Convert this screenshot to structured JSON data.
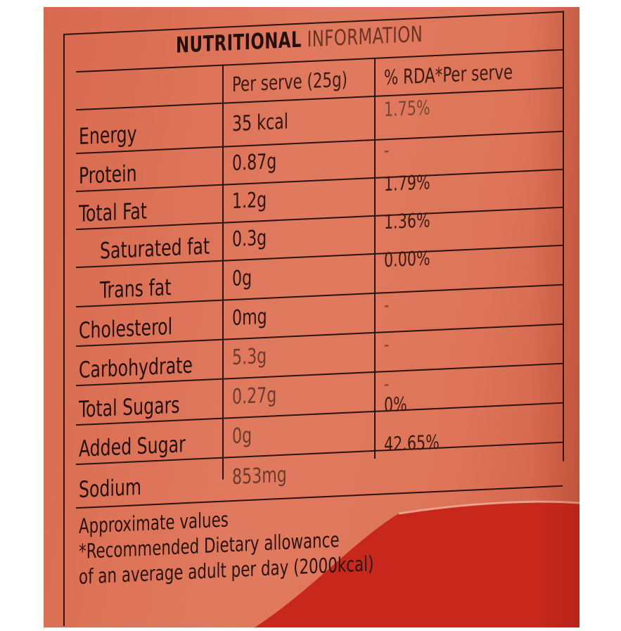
{
  "panel": {
    "title_part1": "NUTRITIONAL",
    "title_part2": "INFORMATION",
    "col_serve": "Per serve (25g)",
    "col_rda": "% RDA*Per serve"
  },
  "rows": [
    {
      "nutrient": "Energy",
      "per_serve": "35 kcal",
      "rda": "1.75%"
    },
    {
      "nutrient": "Protein",
      "per_serve": "0.87g",
      "rda": "-"
    },
    {
      "nutrient": "Total Fat",
      "per_serve": "1.2g",
      "rda": "1.79%"
    },
    {
      "nutrient": "Saturated fat",
      "per_serve": "0.3g",
      "rda": "1.36%"
    },
    {
      "nutrient": "Trans fat",
      "per_serve": "0g",
      "rda": "0.00%"
    },
    {
      "nutrient": "Cholesterol",
      "per_serve": "0mg",
      "rda": "-"
    },
    {
      "nutrient": "Carbohydrate",
      "per_serve": "5.3g",
      "rda": "-"
    },
    {
      "nutrient": "Total Sugars",
      "per_serve": "0.27g",
      "rda": "-"
    },
    {
      "nutrient": "Added Sugar",
      "per_serve": "0g",
      "rda": "0%"
    },
    {
      "nutrient": "Sodium",
      "per_serve": "853mg",
      "rda": "42.65%"
    }
  ],
  "footnote": {
    "line1": "Approximate values",
    "line2": "*Recommended Dietary allowance",
    "line3": "of an average adult per day (2000kcal)"
  },
  "colors": {
    "pack": "#de7559",
    "ink": "#23100c",
    "seal_red": "#c8281c"
  }
}
